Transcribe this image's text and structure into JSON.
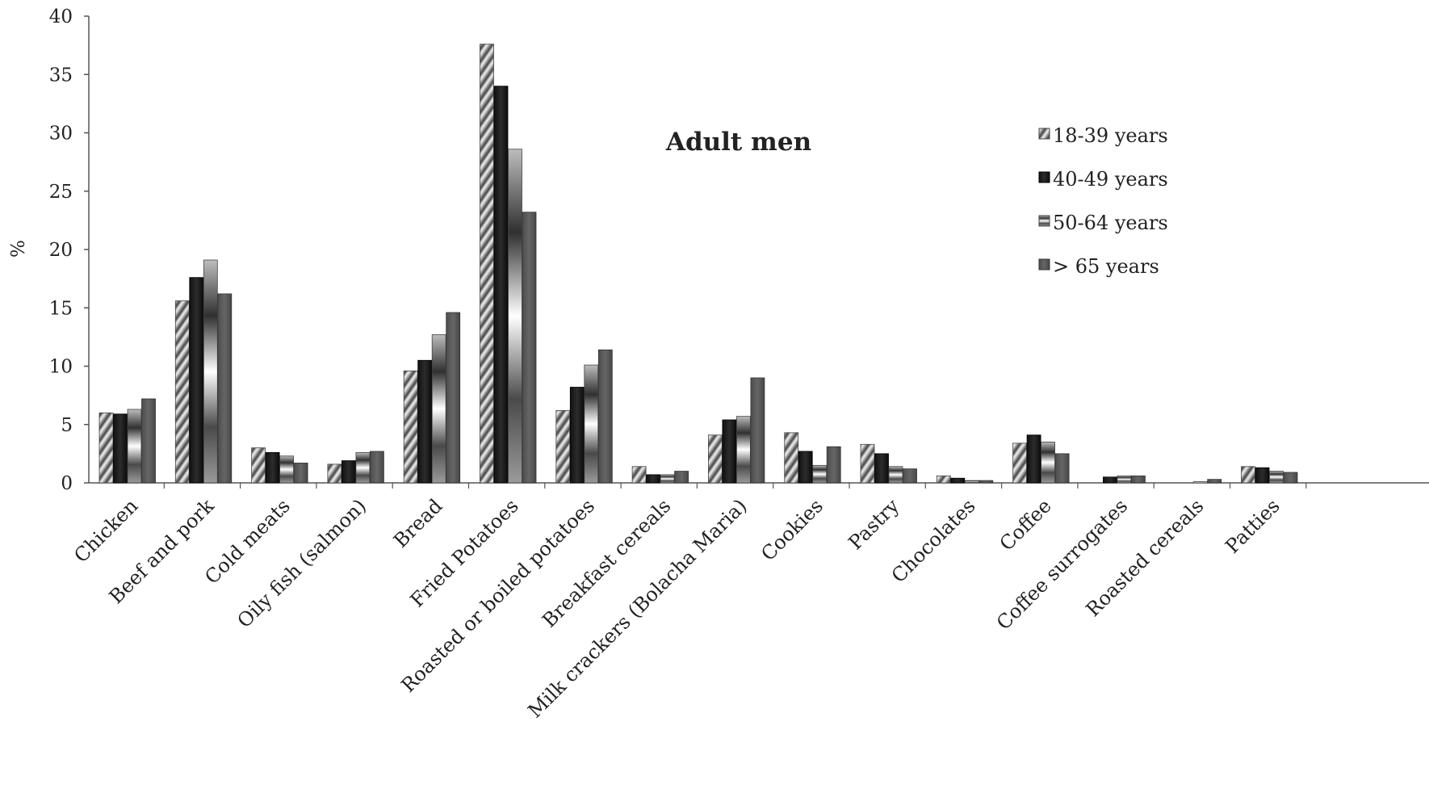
{
  "chart_data": {
    "type": "bar",
    "title": "Adult men",
    "ylabel": "%",
    "xlabel": "",
    "ylim": [
      0,
      40
    ],
    "yticks": [
      0,
      5,
      10,
      15,
      20,
      25,
      30,
      35,
      40
    ],
    "grid": false,
    "legend_position": "top-right",
    "categories": [
      "Chicken",
      "Beef and pork",
      "Cold meats",
      "Oily fish (salmon)",
      "Bread",
      "Fried Potatoes",
      "Roasted or boiled potatoes",
      "Breakfast cereals",
      "Milk crackers (Bolacha Maria)",
      "Cookies",
      "Pastry",
      "Chocolates",
      "Coffee",
      "Coffee surrogates",
      "Roasted cereals",
      "Patties"
    ],
    "series": [
      {
        "name": "18-39 years",
        "values": [
          6.0,
          15.6,
          3.0,
          1.6,
          9.6,
          37.6,
          6.2,
          1.4,
          4.1,
          4.3,
          3.3,
          0.6,
          3.4,
          0.0,
          0.0,
          1.4
        ]
      },
      {
        "name": "40-49 years",
        "values": [
          5.9,
          17.6,
          2.6,
          1.9,
          10.5,
          34.0,
          8.2,
          0.7,
          5.4,
          2.7,
          2.5,
          0.4,
          4.1,
          0.5,
          0.0,
          1.3
        ]
      },
      {
        "name": "50-64 years",
        "values": [
          6.3,
          19.1,
          2.3,
          2.6,
          12.7,
          28.6,
          10.1,
          0.7,
          5.7,
          1.5,
          1.4,
          0.2,
          3.5,
          0.6,
          0.1,
          1.0
        ]
      },
      {
        "name": "> 65 years",
        "values": [
          7.2,
          16.2,
          1.7,
          2.7,
          14.6,
          23.2,
          11.4,
          1.0,
          9.0,
          3.1,
          1.2,
          0.2,
          2.5,
          0.6,
          0.3,
          0.9
        ]
      }
    ],
    "colors": {
      "18-39 years": "#b8b8b8",
      "40-49 years": "#1e1e1e",
      "50-64 years": "#8a8a8a",
      "> 65 years": "#5a5a5a"
    }
  }
}
